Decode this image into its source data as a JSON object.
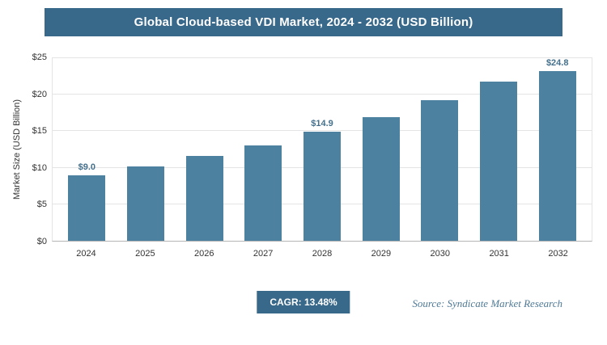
{
  "header": {
    "title": "Global Cloud-based VDI Market, 2024 - 2032 (USD Billion)"
  },
  "chart_data": {
    "type": "bar",
    "title": "Global Cloud-based VDI Market, 2024 - 2032 (USD Billion)",
    "categories": [
      "2024",
      "2025",
      "2026",
      "2027",
      "2028",
      "2029",
      "2030",
      "2031",
      "2032"
    ],
    "values": [
      9.0,
      10.2,
      11.6,
      13.1,
      14.9,
      16.9,
      19.2,
      21.8,
      24.8
    ],
    "labeled_indices": [
      0,
      4,
      8
    ],
    "label_texts": [
      "$9.0",
      "$14.9",
      "$24.8"
    ],
    "xlabel": "",
    "ylabel": "Market Size (USD Billion)",
    "ylim": [
      0,
      25
    ],
    "ytick_values": [
      0,
      5,
      10,
      15,
      20,
      25
    ],
    "ytick_labels": [
      "$0",
      "$5",
      "$10",
      "$15",
      "$20",
      "$25"
    ],
    "grid": true,
    "legend": "none",
    "bar_color": "#4d81a0"
  },
  "footer": {
    "cagr_label": "CAGR: 13.48%",
    "source": "Source: Syndicate Market Research"
  },
  "colors": {
    "header_bg": "#38688a",
    "bar": "#4d81a0",
    "badge_bg": "#38688a",
    "source_text": "#4f7a96",
    "gridline": "#e4e4e4"
  }
}
